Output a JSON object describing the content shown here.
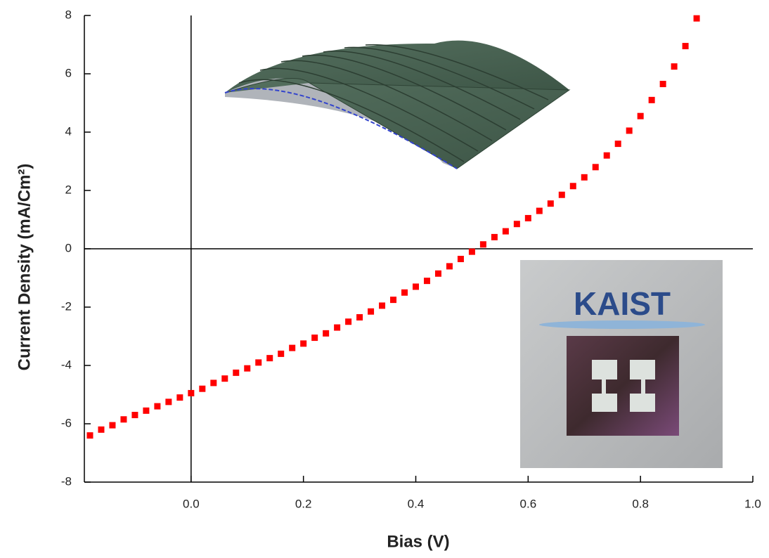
{
  "chart_data": {
    "type": "scatter",
    "xlabel": "Bias (V)",
    "ylabel": "Current Density (mA/Cm²)",
    "annotations": [
      "KAIST"
    ],
    "xlim": [
      -0.19,
      1.0
    ],
    "ylim": [
      -8,
      8
    ],
    "xticks": [
      {
        "value": 0,
        "label": "0.0"
      },
      0.2,
      0.4,
      0.6,
      0.8,
      {
        "value": 1,
        "label": "1.0"
      }
    ],
    "yticks": [
      -8,
      -6,
      -4,
      -2,
      0,
      2,
      4,
      6,
      8
    ],
    "zero_lines": true,
    "series": [
      {
        "color": "#ff0000",
        "marker": "square",
        "x": [
          -0.18,
          -0.16,
          -0.14,
          -0.12,
          -0.1,
          -0.08,
          -0.06,
          -0.04,
          -0.02,
          0.0,
          0.02,
          0.04,
          0.06,
          0.08,
          0.1,
          0.12,
          0.14,
          0.16,
          0.18,
          0.2,
          0.22,
          0.24,
          0.26,
          0.28,
          0.3,
          0.32,
          0.34,
          0.36,
          0.38,
          0.4,
          0.42,
          0.44,
          0.46,
          0.48,
          0.5,
          0.52,
          0.54,
          0.56,
          0.58,
          0.6,
          0.62,
          0.64,
          0.66,
          0.68,
          0.7,
          0.72,
          0.74,
          0.76,
          0.78,
          0.8,
          0.82,
          0.84,
          0.86,
          0.88,
          0.9
        ],
        "values": [
          -6.4,
          -6.2,
          -6.05,
          -5.85,
          -5.7,
          -5.55,
          -5.4,
          -5.25,
          -5.1,
          -4.95,
          -4.8,
          -4.6,
          -4.45,
          -4.25,
          -4.1,
          -3.9,
          -3.75,
          -3.6,
          -3.4,
          -3.25,
          -3.05,
          -2.9,
          -2.7,
          -2.5,
          -2.35,
          -2.15,
          -1.95,
          -1.75,
          -1.5,
          -1.3,
          -1.1,
          -0.85,
          -0.6,
          -0.35,
          -0.1,
          0.15,
          0.4,
          0.6,
          0.85,
          1.05,
          1.3,
          1.55,
          1.85,
          2.15,
          2.45,
          2.8,
          3.2,
          3.6,
          4.05,
          4.55,
          5.1,
          5.65,
          6.25,
          6.95,
          7.9
        ]
      }
    ]
  }
}
